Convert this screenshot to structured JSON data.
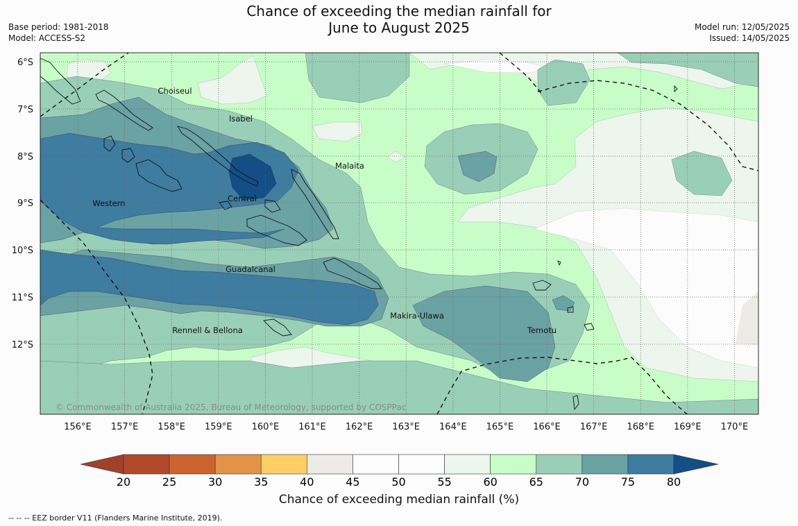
{
  "title_line1": "Chance of exceeding the median rainfall for",
  "title_line2": "June to August 2025",
  "base_period": "Base period: 1981-2018",
  "model": "Model: ACCESS-S2",
  "model_run": "Model run: 12/05/2025",
  "issued": "Issued: 14/05/2025",
  "copyright": "© Commonwealth of Australia 2025, Bureau of Meteorology, supported by COSPPac",
  "footnote": "--  --  -- EEZ border V11 (Flanders Marine Institute, 2019).",
  "map": {
    "lat_labels": [
      "6°S",
      "7°S",
      "8°S",
      "9°S",
      "10°S",
      "11°S",
      "12°S"
    ],
    "lon_labels": [
      "156°E",
      "157°E",
      "158°E",
      "159°E",
      "160°E",
      "161°E",
      "162°E",
      "163°E",
      "164°E",
      "165°E",
      "166°E",
      "167°E",
      "168°E",
      "169°E",
      "170°E"
    ],
    "provinces": [
      "Choiseul",
      "Isabel",
      "Malaita",
      "Western",
      "Central",
      "Guadalcanal",
      "Makira-Ulawa",
      "Temotu",
      "Rennell & Bellona"
    ]
  },
  "colorbar": {
    "label": "Chance of exceeding median rainfall (%)",
    "ticks": [
      "20",
      "25",
      "30",
      "35",
      "40",
      "45",
      "50",
      "55",
      "60",
      "65",
      "70",
      "75",
      "80"
    ],
    "colors": [
      "#a0412a",
      "#b3492a",
      "#cd6430",
      "#e39346",
      "#fdce66",
      "#edebe5",
      "#fbfcfb",
      "#fbfcfb",
      "#ecf6ec",
      "#c8fdc8",
      "#9acfb7",
      "#6ba2a4",
      "#3e7ca0",
      "#134e86"
    ]
  }
}
